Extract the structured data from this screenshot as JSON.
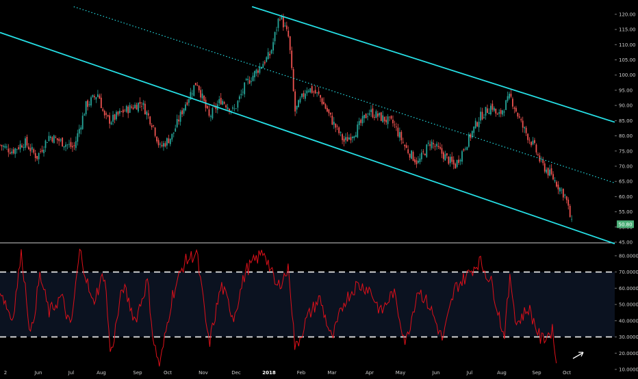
{
  "colors": {
    "background": "#000000",
    "channel": "#26e0e6",
    "candle_up": "#26a69a",
    "candle_down": "#ef5350",
    "rsi_line": "#e0101a",
    "rsi_band_fill": "#0b1220",
    "dashed_level": "#e8e8e8",
    "axis_text": "#cfcfcf",
    "price_badge": "#4caf78",
    "arrow": "#ffffff"
  },
  "chart_data": [
    {
      "type": "candlestick",
      "name": "price-pane",
      "ylim": [
        45,
        122
      ],
      "y_ticks": [
        "45.00",
        "50.00",
        "55.00",
        "60.00",
        "65.00",
        "70.00",
        "75.00",
        "80.00",
        "85.00",
        "90.00",
        "95.00",
        "100.00",
        "105.00",
        "110.00",
        "115.00",
        "120.00"
      ],
      "last_price_label": "50.80",
      "last_price": 50.8,
      "grid": false,
      "trend_channel": {
        "upper_line": [
          [
            0.41,
            122.5
          ],
          [
            1.0,
            84.5
          ]
        ],
        "middle_line_dotted": [
          [
            0.12,
            122.5
          ],
          [
            1.0,
            64.5
          ]
        ],
        "lower_line": [
          [
            0.0,
            114
          ],
          [
            1.0,
            44.5
          ]
        ]
      },
      "approx_close_path": [
        [
          0.0,
          77
        ],
        [
          0.02,
          75
        ],
        [
          0.04,
          78
        ],
        [
          0.06,
          73
        ],
        [
          0.08,
          80
        ],
        [
          0.1,
          78
        ],
        [
          0.12,
          76
        ],
        [
          0.14,
          90
        ],
        [
          0.16,
          94
        ],
        [
          0.17,
          86
        ],
        [
          0.18,
          85
        ],
        [
          0.2,
          88
        ],
        [
          0.23,
          91
        ],
        [
          0.25,
          83
        ],
        [
          0.26,
          76
        ],
        [
          0.28,
          80
        ],
        [
          0.3,
          90
        ],
        [
          0.32,
          98
        ],
        [
          0.34,
          86
        ],
        [
          0.36,
          92
        ],
        [
          0.38,
          88
        ],
        [
          0.4,
          97
        ],
        [
          0.42,
          102
        ],
        [
          0.44,
          107
        ],
        [
          0.455,
          120
        ],
        [
          0.47,
          112
        ],
        [
          0.48,
          88
        ],
        [
          0.5,
          96
        ],
        [
          0.52,
          93
        ],
        [
          0.54,
          85
        ],
        [
          0.56,
          78
        ],
        [
          0.58,
          82
        ],
        [
          0.6,
          88
        ],
        [
          0.62,
          86
        ],
        [
          0.64,
          84
        ],
        [
          0.66,
          76
        ],
        [
          0.68,
          71
        ],
        [
          0.7,
          78
        ],
        [
          0.72,
          74
        ],
        [
          0.74,
          70
        ],
        [
          0.76,
          78
        ],
        [
          0.78,
          86
        ],
        [
          0.8,
          90
        ],
        [
          0.81,
          86
        ],
        [
          0.83,
          93
        ],
        [
          0.84,
          88
        ],
        [
          0.85,
          83
        ],
        [
          0.87,
          76
        ],
        [
          0.88,
          71
        ],
        [
          0.9,
          66
        ],
        [
          0.92,
          60
        ],
        [
          0.93,
          51
        ]
      ]
    },
    {
      "type": "line",
      "name": "rsi-pane",
      "ylim": [
        10,
        85
      ],
      "y_ticks": [
        "10.0000",
        "20.0000",
        "30.0000",
        "40.0000",
        "50.0000",
        "60.0000",
        "70.0000",
        "80.0000"
      ],
      "reference_levels": [
        30,
        70
      ],
      "shaded_band": [
        30,
        70
      ],
      "x_ticks": [
        "2",
        "Jun",
        "Jul",
        "Aug",
        "Sep",
        "Oct",
        "Nov",
        "Dec",
        "2018",
        "Feb",
        "Mar",
        "Apr",
        "May",
        "Jun",
        "Jul",
        "Aug",
        "Sep",
        "Oct"
      ],
      "approx_path": [
        [
          0.0,
          60
        ],
        [
          0.02,
          40
        ],
        [
          0.035,
          82
        ],
        [
          0.05,
          30
        ],
        [
          0.065,
          68
        ],
        [
          0.08,
          45
        ],
        [
          0.1,
          55
        ],
        [
          0.115,
          35
        ],
        [
          0.13,
          84
        ],
        [
          0.15,
          50
        ],
        [
          0.17,
          70
        ],
        [
          0.18,
          18
        ],
        [
          0.2,
          62
        ],
        [
          0.22,
          40
        ],
        [
          0.24,
          65
        ],
        [
          0.25,
          26
        ],
        [
          0.26,
          12
        ],
        [
          0.28,
          55
        ],
        [
          0.3,
          76
        ],
        [
          0.32,
          82
        ],
        [
          0.34,
          25
        ],
        [
          0.36,
          62
        ],
        [
          0.38,
          42
        ],
        [
          0.4,
          71
        ],
        [
          0.43,
          83
        ],
        [
          0.45,
          60
        ],
        [
          0.47,
          72
        ],
        [
          0.48,
          22
        ],
        [
          0.5,
          42
        ],
        [
          0.52,
          54
        ],
        [
          0.54,
          28
        ],
        [
          0.56,
          52
        ],
        [
          0.58,
          62
        ],
        [
          0.6,
          60
        ],
        [
          0.62,
          45
        ],
        [
          0.64,
          58
        ],
        [
          0.66,
          26
        ],
        [
          0.68,
          60
        ],
        [
          0.7,
          48
        ],
        [
          0.72,
          28
        ],
        [
          0.74,
          60
        ],
        [
          0.76,
          68
        ],
        [
          0.78,
          77
        ],
        [
          0.8,
          63
        ],
        [
          0.82,
          30
        ],
        [
          0.83,
          67
        ],
        [
          0.84,
          38
        ],
        [
          0.86,
          48
        ],
        [
          0.88,
          28
        ],
        [
          0.9,
          34
        ],
        [
          0.905,
          12
        ]
      ]
    }
  ]
}
